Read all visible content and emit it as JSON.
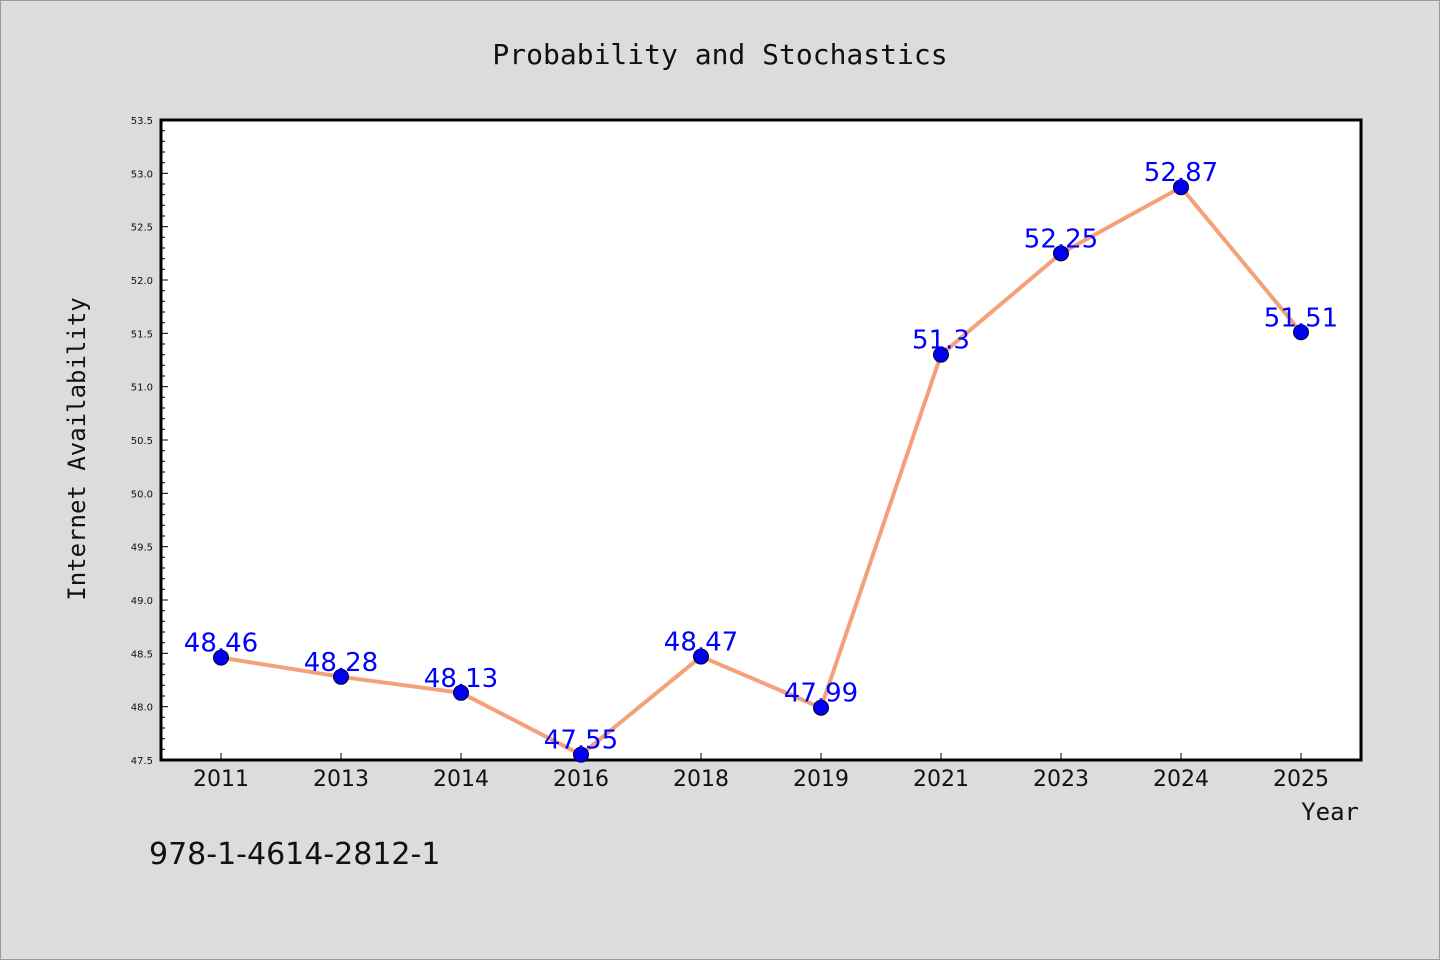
{
  "chart_data": {
    "type": "line",
    "title": "Probability and Stochastics",
    "xlabel": "Year",
    "ylabel": "Internet Availability",
    "categories": [
      "2011",
      "2013",
      "2014",
      "2016",
      "2018",
      "2019",
      "2021",
      "2023",
      "2024",
      "2025"
    ],
    "series": [
      {
        "values": [
          48.46,
          48.28,
          48.13,
          47.55,
          48.47,
          47.99,
          51.3,
          52.25,
          52.87,
          51.51
        ],
        "data_labels": [
          "48.46",
          "48.28",
          "48.13",
          "47.55",
          "48.47",
          "47.99",
          "51.3",
          "52.25",
          "52.87",
          "51.51"
        ],
        "line_color": "#f4a07a",
        "marker_color": "#0000ee"
      }
    ],
    "ylim": [
      47.5,
      53.5
    ],
    "yticks": [
      "47.5",
      "48.0",
      "48.5",
      "49.0",
      "49.5",
      "50.0",
      "50.5",
      "51.0",
      "51.5",
      "52.0",
      "52.5",
      "53.0",
      "53.5"
    ],
    "grid": false,
    "legend": "none",
    "label_color": "#0000ff"
  },
  "footer_text": "978-1-4614-2812-1",
  "colors": {
    "background": "#dcdcdc",
    "plot_background": "#ffffff"
  }
}
